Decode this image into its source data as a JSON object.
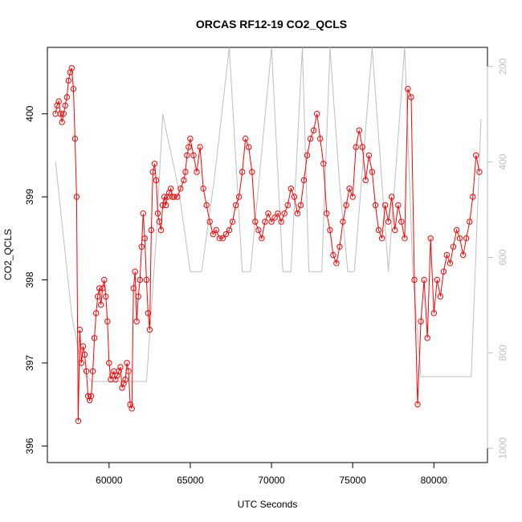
{
  "chart_data": {
    "type": "line",
    "title": "ORCAS RF12-19 CO2_QCLS",
    "xlabel": "UTC Seconds",
    "ylabel": "CO2_QCLS",
    "xlim": [
      56200,
      83300
    ],
    "ylim": [
      395.8,
      400.8
    ],
    "x_ticks": [
      60000,
      65000,
      70000,
      75000,
      80000
    ],
    "y_ticks": [
      396,
      397,
      398,
      399,
      400
    ],
    "y2_ticks": [
      200,
      400,
      600,
      800,
      1000
    ],
    "y2lim": [
      1030,
      160
    ],
    "colors": {
      "co2": "#ff0000",
      "pressure": "#bebebe",
      "axes": "#000000"
    },
    "series": [
      {
        "marker": "open-circle",
        "color": "#ff0000",
        "axis": "left",
        "x": [
          56700,
          56800,
          56900,
          57000,
          57100,
          57200,
          57300,
          57400,
          57500,
          57600,
          57700,
          57800,
          57900,
          58000,
          58100,
          58200,
          58300,
          58400,
          58500,
          58600,
          58700,
          58800,
          58900,
          59000,
          59100,
          59200,
          59300,
          59400,
          59500,
          59600,
          59700,
          59800,
          59900,
          60000,
          60100,
          60200,
          60300,
          60400,
          60500,
          60600,
          60700,
          60800,
          60900,
          61000,
          61100,
          61200,
          61300,
          61400,
          61500,
          61600,
          61700,
          61800,
          61900,
          62000,
          62100,
          62200,
          62300,
          62400,
          62500,
          62600,
          62700,
          62800,
          62900,
          63000,
          63100,
          63200,
          63300,
          63400,
          63500,
          63600,
          63700,
          63800,
          63900,
          64000,
          64200,
          64400,
          64600,
          64700,
          64800,
          64900,
          65000,
          65200,
          65400,
          65600,
          65800,
          66000,
          66200,
          66400,
          66600,
          66800,
          67000,
          67200,
          67400,
          67600,
          67800,
          68000,
          68200,
          68400,
          68600,
          68800,
          69000,
          69200,
          69400,
          69600,
          69800,
          70000,
          70200,
          70400,
          70600,
          70800,
          71000,
          71200,
          71400,
          71600,
          71800,
          72000,
          72200,
          72400,
          72600,
          72800,
          73000,
          73200,
          73400,
          73600,
          73800,
          74000,
          74200,
          74400,
          74600,
          74800,
          75000,
          75200,
          75400,
          75600,
          75800,
          76000,
          76200,
          76400,
          76600,
          76800,
          77000,
          77200,
          77400,
          77600,
          77800,
          78000,
          78200,
          78400,
          78600,
          78800,
          79000,
          79200,
          79400,
          79600,
          79800,
          80000,
          80200,
          80400,
          80600,
          80800,
          81000,
          81200,
          81400,
          81600,
          81800,
          82000,
          82200,
          82400,
          82600,
          82800
        ],
        "y": [
          400.0,
          400.1,
          400.15,
          400.0,
          399.9,
          400.0,
          400.1,
          400.2,
          400.4,
          400.5,
          400.55,
          400.3,
          399.7,
          399.0,
          396.3,
          397.4,
          397.0,
          397.2,
          397.1,
          396.9,
          396.6,
          396.55,
          396.6,
          396.9,
          397.3,
          397.6,
          397.8,
          397.9,
          397.7,
          397.9,
          398.0,
          397.8,
          397.5,
          397.0,
          396.8,
          396.85,
          396.9,
          396.8,
          396.85,
          396.9,
          396.95,
          396.7,
          396.75,
          396.8,
          397.0,
          396.9,
          396.5,
          396.45,
          397.9,
          398.1,
          397.5,
          397.8,
          398.0,
          398.4,
          398.8,
          398.5,
          398.0,
          397.6,
          397.4,
          398.6,
          399.3,
          399.4,
          399.2,
          398.8,
          398.7,
          398.6,
          398.9,
          399.0,
          398.9,
          399.0,
          399.05,
          399.1,
          399.0,
          399.0,
          399.0,
          399.1,
          399.2,
          399.3,
          399.5,
          399.6,
          399.7,
          399.5,
          399.3,
          399.6,
          399.1,
          398.9,
          398.7,
          398.55,
          398.6,
          398.5,
          398.5,
          398.55,
          398.6,
          398.7,
          398.9,
          399.0,
          399.3,
          399.7,
          399.6,
          399.3,
          398.7,
          398.6,
          398.5,
          398.7,
          398.8,
          398.7,
          398.75,
          398.8,
          398.7,
          398.8,
          398.9,
          399.1,
          399.0,
          398.8,
          398.9,
          399.2,
          399.5,
          399.7,
          399.8,
          400.0,
          399.7,
          399.4,
          398.8,
          398.6,
          398.3,
          398.2,
          398.4,
          398.7,
          398.9,
          399.1,
          399.0,
          399.6,
          399.8,
          399.6,
          399.2,
          399.5,
          399.3,
          398.9,
          398.6,
          398.5,
          398.9,
          398.7,
          399.0,
          398.6,
          398.9,
          398.7,
          398.5,
          400.3,
          400.2,
          398.0,
          396.5,
          397.5,
          398.0,
          397.3,
          398.5,
          397.6,
          398.0,
          397.8,
          398.1,
          398.3,
          398.2,
          398.4,
          398.6,
          398.5,
          398.3,
          398.5,
          398.7,
          399.0,
          399.5,
          399.3
        ]
      },
      {
        "marker": "line",
        "color": "#bebebe",
        "axis": "right",
        "x": [
          56700,
          57200,
          57700,
          58300,
          58900,
          59400,
          60000,
          60500,
          61000,
          61600,
          62300,
          62900,
          63300,
          64300,
          65000,
          65700,
          66500,
          67400,
          68200,
          68700,
          69200,
          70000,
          70700,
          71200,
          71900,
          72300,
          73100,
          73600,
          74200,
          74700,
          75100,
          76200,
          77200,
          78200,
          78700,
          79200,
          80000,
          81000,
          82300,
          82900
        ],
        "y": [
          400,
          560,
          720,
          830,
          860,
          860,
          860,
          860,
          860,
          860,
          860,
          560,
          300,
          460,
          630,
          630,
          430,
          160,
          630,
          630,
          450,
          160,
          630,
          630,
          160,
          630,
          630,
          160,
          450,
          630,
          630,
          160,
          630,
          160,
          630,
          850,
          850,
          850,
          850,
          310
        ]
      }
    ]
  }
}
